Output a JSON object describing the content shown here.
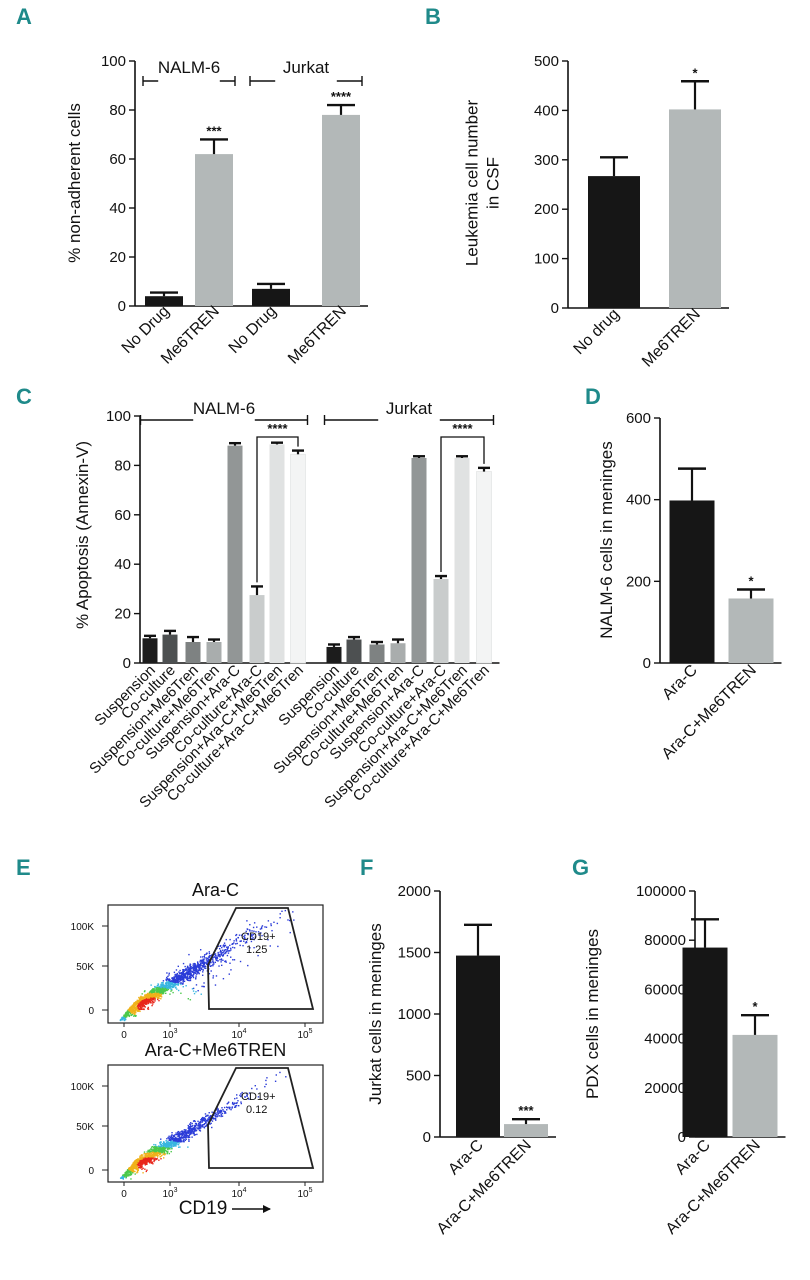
{
  "chart_data": [
    {
      "panel": "A",
      "type": "bar",
      "ylabel": "% non-adherent cells",
      "ylim": [
        0,
        100
      ],
      "yticks": [
        0,
        20,
        40,
        60,
        80,
        100
      ],
      "categories": [
        "No Drug",
        "Me6TREN",
        "No Drug",
        "Me6TREN"
      ],
      "values": [
        4,
        62,
        7,
        78
      ],
      "errors": [
        1.5,
        6,
        2,
        4
      ],
      "colors": [
        "#161616",
        "#b3b8b8",
        "#161616",
        "#b3b8b8"
      ],
      "significance": [
        "",
        "***",
        "",
        "****"
      ],
      "groups": [
        {
          "label": "NALM-6",
          "from": 0,
          "to": 1
        },
        {
          "label": "Jurkat",
          "from": 2,
          "to": 3
        }
      ]
    },
    {
      "panel": "B",
      "type": "bar",
      "ylabel": [
        "Leukemia cell number",
        "in CSF"
      ],
      "ylim": [
        0,
        500
      ],
      "yticks": [
        0,
        100,
        200,
        300,
        400,
        500
      ],
      "categories": [
        "No drug",
        "Me6TREN"
      ],
      "values": [
        267,
        402
      ],
      "errors": [
        38,
        57
      ],
      "colors": [
        "#161616",
        "#b3b8b8"
      ],
      "significance": [
        "",
        "*"
      ]
    },
    {
      "panel": "C",
      "type": "bar",
      "ylabel": "% Apoptosis (Annexin-V)",
      "ylim": [
        0,
        100
      ],
      "yticks": [
        0,
        20,
        40,
        60,
        80,
        100
      ],
      "categories": [
        "Suspension",
        "Co-culture",
        "Suspension+Me6Tren",
        "Co-culture+Me6Tren",
        "Suspension+Ara-C",
        "Co-culture+Ara-C",
        "Suspension+Ara-C+Me6Tren",
        "Co-culture+Ara-C+Me6Tren",
        "Suspension",
        "Co-culture",
        "Suspension+Me6Tren",
        "Co-culture+Me6Tren",
        "Suspension+Ara-C",
        "Co-culture+Ara-C",
        "Suspension+Ara-C+Me6Tren",
        "Co-culture+Ara-C+Me6Tren"
      ],
      "values": [
        10,
        11.5,
        8.5,
        8.5,
        88,
        27.5,
        88.5,
        84.5,
        6.5,
        9.5,
        7.5,
        8,
        83,
        34,
        83,
        77.5
      ],
      "errors": [
        1,
        1.5,
        2,
        1,
        1,
        3.5,
        0.7,
        1.5,
        1,
        1,
        1,
        1.5,
        0.7,
        1.2,
        0.7,
        1.5
      ],
      "colors": [
        "#1c1c1c",
        "#4d5051",
        "#7e8282",
        "#a9adad",
        "#929696",
        "#c9cccc",
        "#e0e2e2",
        "#f3f4f4",
        "#1c1c1c",
        "#4d5051",
        "#7e8282",
        "#a9adad",
        "#929696",
        "#c9cccc",
        "#e0e2e2",
        "#f3f4f4"
      ],
      "groups": [
        {
          "label": "NALM-6",
          "from": 0,
          "to": 7
        },
        {
          "label": "Jurkat",
          "from": 8,
          "to": 15
        }
      ],
      "comparisons": [
        {
          "label": "****",
          "from": 5,
          "to": 7
        },
        {
          "label": "****",
          "from": 13,
          "to": 15
        }
      ]
    },
    {
      "panel": "D",
      "type": "bar",
      "ylabel": "NALM-6 cells in meninges",
      "ylim": [
        0,
        600
      ],
      "yticks": [
        0,
        200,
        400,
        600
      ],
      "categories": [
        "Ara-C",
        "Ara-C+Me6TREN"
      ],
      "values": [
        398,
        158
      ],
      "errors": [
        78,
        22
      ],
      "colors": [
        "#161616",
        "#b3b8b8"
      ],
      "significance": [
        "",
        "*"
      ]
    },
    {
      "panel": "E",
      "type": "scatter",
      "xlabel": "CD19",
      "plots": [
        {
          "title": "Ara-C",
          "gate_label": "CD19+",
          "gate_value": "1.25",
          "sparse": false
        },
        {
          "title": "Ara-C+Me6TREN",
          "gate_label": "CD19+",
          "gate_value": "0.12",
          "sparse": true
        }
      ],
      "yticks": [
        "100K",
        "50K",
        "0"
      ],
      "xticks": [
        {
          "base": "0",
          "exp": ""
        },
        {
          "base": "10",
          "exp": "3"
        },
        {
          "base": "10",
          "exp": "4"
        },
        {
          "base": "10",
          "exp": "5"
        }
      ]
    },
    {
      "panel": "F",
      "type": "bar",
      "ylabel": "Jurkat cells in meninges",
      "ylim": [
        0,
        2000
      ],
      "yticks": [
        0,
        500,
        1000,
        1500,
        2000
      ],
      "categories": [
        "Ara-C",
        "Ara-C+Me6TREN"
      ],
      "values": [
        1475,
        105
      ],
      "errors": [
        250,
        40
      ],
      "colors": [
        "#161616",
        "#b3b8b8"
      ],
      "significance": [
        "",
        "***"
      ]
    },
    {
      "panel": "G",
      "type": "bar",
      "ylabel": "PDX cells in meninges",
      "ylim": [
        0,
        100000
      ],
      "yticks": [
        0,
        20000,
        40000,
        60000,
        80000,
        100000
      ],
      "categories": [
        "Ara-C",
        "Ara-C+Me6TREN"
      ],
      "values": [
        77000,
        41500
      ],
      "errors": [
        11500,
        8000
      ],
      "colors": [
        "#161616",
        "#b3b8b8"
      ],
      "significance": [
        "",
        "*"
      ]
    }
  ]
}
